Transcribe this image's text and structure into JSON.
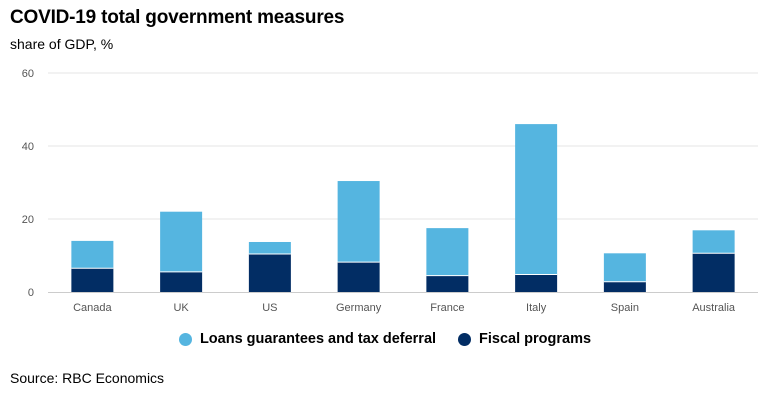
{
  "title": "COVID-19 total government measures",
  "subtitle": "share of GDP, %",
  "source": "Source: RBC Economics",
  "colors": {
    "loans": "#55b5e0",
    "fiscal": "#022d64",
    "grid": "#e6e6e6",
    "axis": "#cccccc",
    "tick_text": "#555555"
  },
  "chart_data": {
    "type": "bar",
    "stacked": true,
    "categories": [
      "Canada",
      "UK",
      "US",
      "Germany",
      "France",
      "Italy",
      "Spain",
      "Australia"
    ],
    "series": [
      {
        "name": "Fiscal programs",
        "values": [
          6.5,
          5.5,
          10.4,
          8.2,
          4.5,
          4.8,
          2.8,
          10.6
        ]
      },
      {
        "name": "Loans guarantees and tax deferral",
        "values": [
          7.5,
          16.5,
          3.3,
          22.2,
          13.0,
          41.2,
          7.8,
          6.3
        ]
      }
    ],
    "yticks": [
      0,
      20,
      40,
      60
    ],
    "ylim": [
      0,
      60
    ],
    "xlabel": "",
    "ylabel": "",
    "legend": "bottom-center"
  },
  "legend": [
    {
      "label": "Loans guarantees and tax deferral",
      "color": "#55b5e0"
    },
    {
      "label": "Fiscal programs",
      "color": "#022d64"
    }
  ]
}
